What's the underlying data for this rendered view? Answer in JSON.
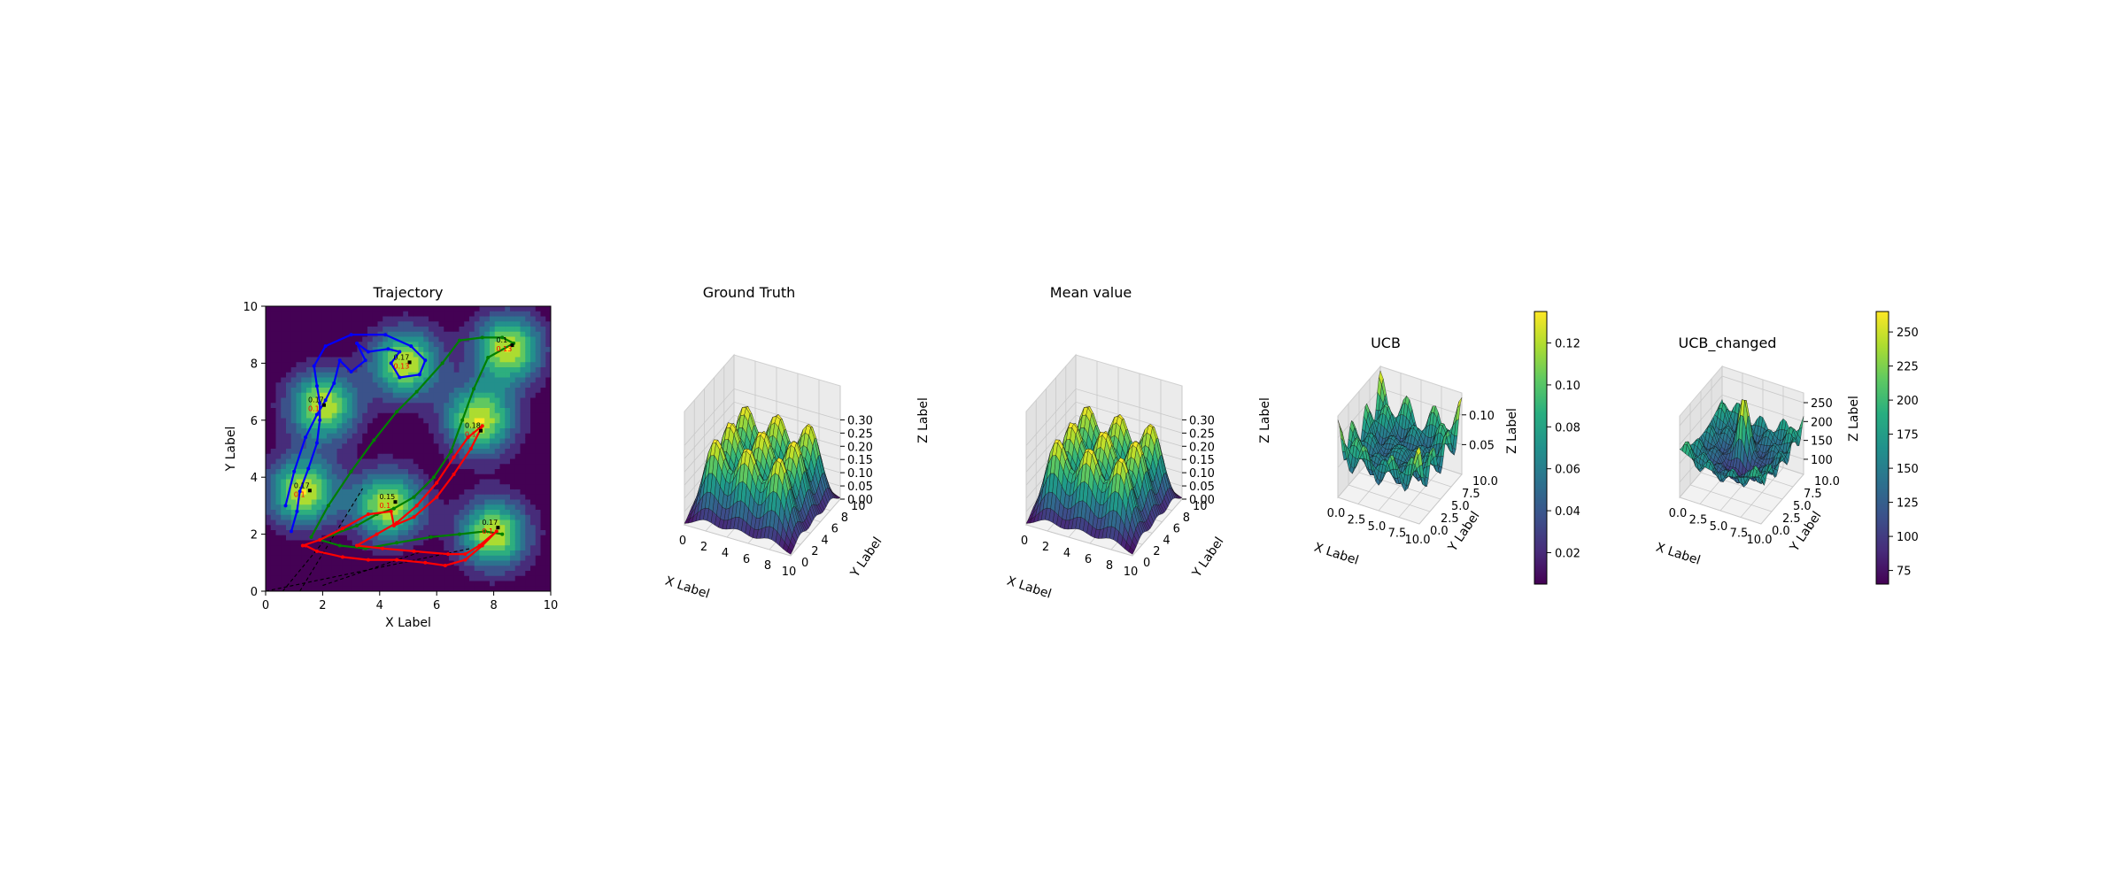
{
  "figure": {
    "background": "#ffffff"
  },
  "chart_data": [
    {
      "id": "trajectory",
      "type": "heatmap",
      "title": "Trajectory",
      "xlabel": "X Label",
      "ylabel": "Y Label",
      "xlim": [
        0,
        10
      ],
      "ylim": [
        0,
        10
      ],
      "xticks": [
        "0",
        "2",
        "4",
        "6",
        "8",
        "10"
      ],
      "yticks": [
        "0",
        "2",
        "4",
        "6",
        "8",
        "10"
      ],
      "colormap": "viridis",
      "peaks": [
        [
          1.3,
          3.5
        ],
        [
          2.0,
          6.5
        ],
        [
          4.3,
          3.0
        ],
        [
          4.9,
          8.0
        ],
        [
          7.5,
          6.0
        ],
        [
          8.0,
          2.0
        ],
        [
          8.5,
          8.5
        ]
      ],
      "peak_labels": [
        {
          "x": 1.3,
          "y": 3.5,
          "black": "0.17",
          "red": "0.1"
        },
        {
          "x": 1.8,
          "y": 6.5,
          "black": "0.17",
          "red": "0.1"
        },
        {
          "x": 4.3,
          "y": 3.1,
          "black": "0.15",
          "red": "0.1"
        },
        {
          "x": 4.8,
          "y": 8.0,
          "black": "0.17",
          "red": "0.13"
        },
        {
          "x": 7.3,
          "y": 5.6,
          "black": "0.18",
          "red": "0.1"
        },
        {
          "x": 7.9,
          "y": 2.2,
          "black": "0.17",
          "red": "0.1"
        },
        {
          "x": 8.4,
          "y": 8.6,
          "black": "0.1",
          "red": "0.13"
        }
      ],
      "paths": [
        {
          "color": "#0000ff",
          "points": [
            [
              0.9,
              2.1
            ],
            [
              1.1,
              2.8
            ],
            [
              1.2,
              3.5
            ],
            [
              1.5,
              4.3
            ],
            [
              1.8,
              5.2
            ],
            [
              1.9,
              6.0
            ],
            [
              1.9,
              6.6
            ],
            [
              1.8,
              7.2
            ],
            [
              1.7,
              7.9
            ],
            [
              2.1,
              8.6
            ],
            [
              3.0,
              9.0
            ],
            [
              4.2,
              9.0
            ],
            [
              5.1,
              8.6
            ],
            [
              5.6,
              8.1
            ],
            [
              5.4,
              7.6
            ],
            [
              4.7,
              7.5
            ],
            [
              4.4,
              8.0
            ],
            [
              4.7,
              8.4
            ],
            [
              4.3,
              8.5
            ],
            [
              3.6,
              8.4
            ],
            [
              3.2,
              8.7
            ],
            [
              3.5,
              8.1
            ],
            [
              3.0,
              7.7
            ],
            [
              2.6,
              8.1
            ],
            [
              2.4,
              7.3
            ],
            [
              2.1,
              6.7
            ],
            [
              1.8,
              6.2
            ],
            [
              1.4,
              5.4
            ],
            [
              1.0,
              4.2
            ],
            [
              0.7,
              3.0
            ]
          ]
        },
        {
          "color": "#008000",
          "points": [
            [
              1.6,
              1.9
            ],
            [
              2.2,
              3.0
            ],
            [
              3.0,
              4.2
            ],
            [
              3.8,
              5.3
            ],
            [
              4.6,
              6.3
            ],
            [
              5.3,
              7.0
            ],
            [
              6.2,
              8.0
            ],
            [
              6.8,
              8.8
            ],
            [
              7.6,
              8.9
            ],
            [
              8.3,
              8.9
            ],
            [
              8.7,
              8.7
            ],
            [
              7.8,
              8.2
            ],
            [
              7.3,
              7.1
            ],
            [
              6.9,
              6.0
            ],
            [
              6.5,
              4.9
            ],
            [
              5.9,
              4.0
            ],
            [
              5.2,
              3.3
            ],
            [
              4.5,
              2.9
            ],
            [
              3.9,
              2.7
            ],
            [
              3.2,
              2.3
            ],
            [
              2.4,
              2.0
            ],
            [
              1.9,
              1.8
            ],
            [
              2.6,
              1.6
            ],
            [
              3.5,
              1.5
            ],
            [
              4.6,
              1.7
            ],
            [
              5.8,
              1.9
            ],
            [
              6.8,
              2.0
            ],
            [
              7.7,
              2.1
            ],
            [
              8.3,
              2.0
            ]
          ]
        },
        {
          "color": "#ff0000",
          "points": [
            [
              1.4,
              1.6
            ],
            [
              1.8,
              1.4
            ],
            [
              2.7,
              1.2
            ],
            [
              3.6,
              1.1
            ],
            [
              4.6,
              1.1
            ],
            [
              5.6,
              1.0
            ],
            [
              6.3,
              0.9
            ],
            [
              7.0,
              1.1
            ],
            [
              7.6,
              1.6
            ],
            [
              8.1,
              2.1
            ],
            [
              7.5,
              1.6
            ],
            [
              7.0,
              1.3
            ],
            [
              6.4,
              1.3
            ],
            [
              5.2,
              1.4
            ],
            [
              4.1,
              1.5
            ],
            [
              3.2,
              1.6
            ],
            [
              3.9,
              2.0
            ],
            [
              4.6,
              2.4
            ],
            [
              5.3,
              3.0
            ],
            [
              6.0,
              3.8
            ],
            [
              6.6,
              4.7
            ],
            [
              7.1,
              5.4
            ],
            [
              7.6,
              5.8
            ],
            [
              7.2,
              5.0
            ],
            [
              6.6,
              4.1
            ],
            [
              6.0,
              3.3
            ],
            [
              5.2,
              2.6
            ],
            [
              4.5,
              2.3
            ],
            [
              4.4,
              2.8
            ],
            [
              3.6,
              2.7
            ],
            [
              2.7,
              2.2
            ],
            [
              1.9,
              1.8
            ],
            [
              1.3,
              1.6
            ]
          ]
        }
      ],
      "dashed_lines": [
        [
          [
            1.2,
            0.0
          ],
          [
            3.4,
            3.6
          ]
        ],
        [
          [
            0.6,
            0.0
          ],
          [
            2.0,
            1.7
          ]
        ],
        [
          [
            0.0,
            0.0
          ],
          [
            7.2,
            1.5
          ]
        ],
        [
          [
            2.0,
            0.2
          ],
          [
            5.5,
            1.4
          ]
        ]
      ]
    },
    {
      "id": "ground-truth",
      "type": "surface",
      "title": "Ground Truth",
      "xlabel": "X Label",
      "ylabel": "Y Label",
      "zlabel": "Z Label",
      "xticks": [
        "0",
        "2",
        "4",
        "6",
        "8",
        "10"
      ],
      "yticks": [
        "0",
        "2",
        "4",
        "6",
        "8",
        "10"
      ],
      "zticks": [
        "0.00",
        "0.05",
        "0.10",
        "0.15",
        "0.20",
        "0.25",
        "0.30"
      ],
      "zlim": [
        0,
        0.3
      ],
      "colormap": "viridis"
    },
    {
      "id": "mean-value",
      "type": "surface",
      "title": "Mean value",
      "xlabel": "X Label",
      "ylabel": "Y Label",
      "zlabel": "Z Label",
      "xticks": [
        "0",
        "2",
        "4",
        "6",
        "8",
        "10"
      ],
      "yticks": [
        "0",
        "2",
        "4",
        "6",
        "8",
        "10"
      ],
      "zticks": [
        "0.00",
        "0.05",
        "0.10",
        "0.15",
        "0.20",
        "0.25",
        "0.30"
      ],
      "zlim": [
        0,
        0.3
      ],
      "colormap": "viridis"
    },
    {
      "id": "ucb",
      "type": "surface",
      "title": "UCB",
      "xlabel": "X Label",
      "ylabel": "Y Label",
      "zlabel": "Z Label",
      "xticks": [
        "0.0",
        "2.5",
        "5.0",
        "7.5",
        "10.0"
      ],
      "yticks": [
        "0.0",
        "2.5",
        "5.0",
        "7.5",
        "10.0"
      ],
      "zticks": [
        "0.05",
        "0.10"
      ],
      "zlim": [
        0.0,
        0.13
      ],
      "colorbar_ticks": [
        "0.02",
        "0.04",
        "0.06",
        "0.08",
        "0.10",
        "0.12"
      ],
      "colorbar_range": [
        0.005,
        0.135
      ],
      "colormap": "viridis"
    },
    {
      "id": "ucb-changed",
      "type": "surface",
      "title": "UCB_changed",
      "xlabel": "X Label",
      "ylabel": "Y Label",
      "zlabel": "Z Label",
      "xticks": [
        "0.0",
        "2.5",
        "5.0",
        "7.5",
        "10.0"
      ],
      "yticks": [
        "0.0",
        "2.5",
        "5.0",
        "7.5",
        "10.0"
      ],
      "zticks": [
        "100",
        "150",
        "200",
        "250"
      ],
      "zlim": [
        60,
        265
      ],
      "colorbar_ticks": [
        "75",
        "100",
        "125",
        "150",
        "175",
        "200",
        "225",
        "250"
      ],
      "colorbar_range": [
        65,
        265
      ],
      "colormap": "viridis"
    }
  ]
}
